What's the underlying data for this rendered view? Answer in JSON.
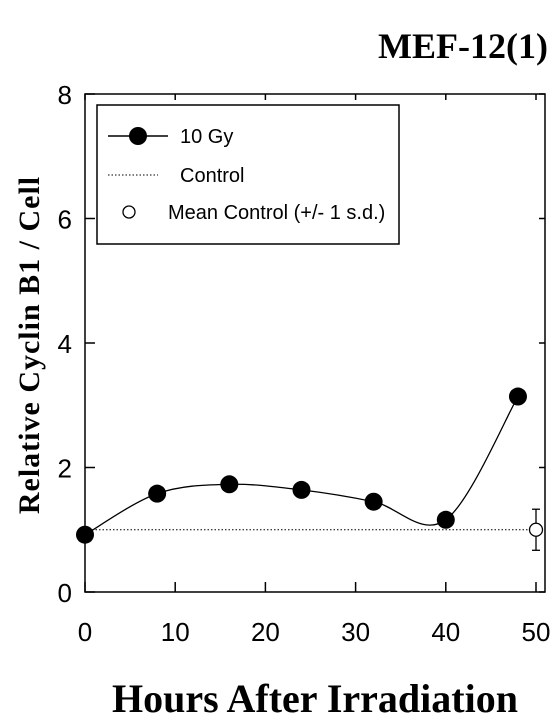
{
  "chart_data": {
    "type": "line",
    "title": "MEF-12(1)",
    "xlabel": "Hours After Irradiation",
    "ylabel": "Relative Cyclin B1 / Cell",
    "xlim": [
      0,
      50
    ],
    "ylim": [
      0,
      8
    ],
    "xticks": [
      0,
      10,
      20,
      30,
      40,
      50
    ],
    "yticks": [
      0,
      2,
      4,
      6,
      8
    ],
    "grid": false,
    "legend_position": "top-left",
    "series": [
      {
        "name": "10 Gy",
        "style": "filled-circle-smooth-line",
        "x": [
          0,
          8,
          16,
          24,
          32,
          40,
          48
        ],
        "y": [
          0.92,
          1.58,
          1.73,
          1.64,
          1.45,
          1.16,
          3.14
        ]
      },
      {
        "name": "Control",
        "style": "dotted-line",
        "x": [
          0,
          50
        ],
        "y": [
          1.0,
          1.0
        ]
      },
      {
        "name": "Mean Control (+/- 1 s.d.)",
        "style": "open-circle-errorbar",
        "x": [
          50
        ],
        "y": [
          1.0
        ],
        "err": [
          0.33
        ]
      }
    ]
  }
}
